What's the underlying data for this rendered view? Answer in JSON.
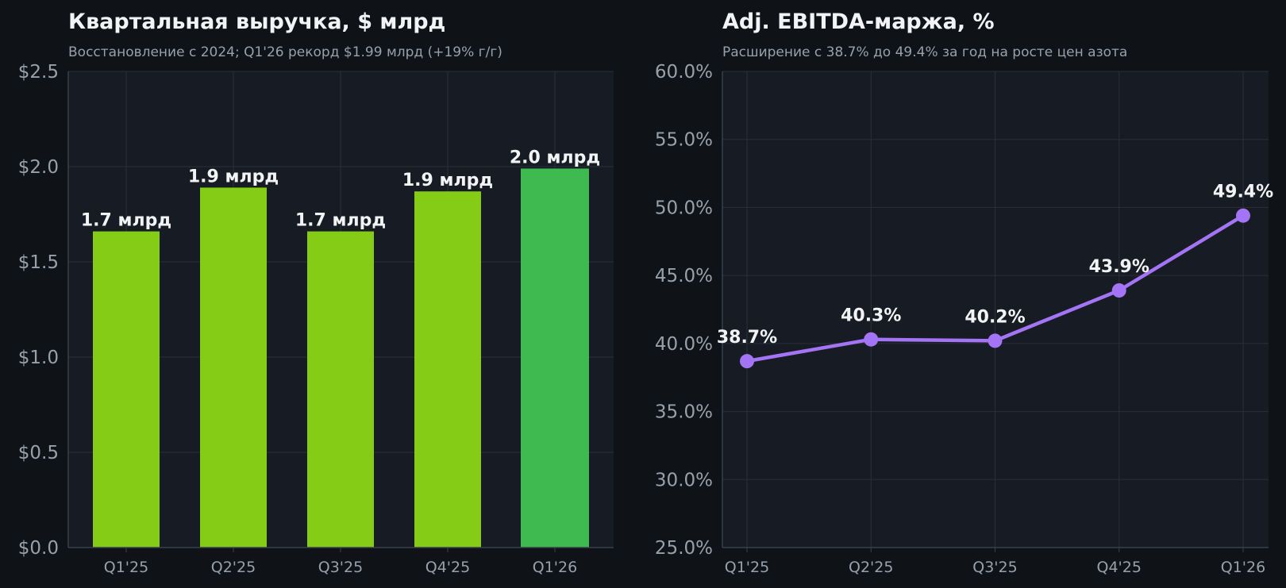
{
  "theme": {
    "page_bg": "#0f1318",
    "plot_bg": "#171b23",
    "grid": "#2a2f38",
    "axis": "#3a404a",
    "text_main": "#f2f3f5",
    "text_muted": "#9aa0a8",
    "bar_color": "#84cc16",
    "bar_highlight": "#3fba50",
    "line_color": "#a374f5"
  },
  "chart_data": [
    {
      "type": "bar",
      "title": "Квартальная выручка, $ млрд",
      "subtitle": "Восстановление с 2024; Q1'26 рекорд $1.99 млрд (+19% г/г)",
      "xlabel": "",
      "ylabel": "",
      "categories": [
        "Q1'25",
        "Q2'25",
        "Q3'25",
        "Q4'25",
        "Q1'26"
      ],
      "values": [
        1.66,
        1.89,
        1.66,
        1.87,
        1.99
      ],
      "data_labels": [
        "1.7 млрд",
        "1.9 млрд",
        "1.7 млрд",
        "1.9 млрд",
        "2.0 млрд"
      ],
      "highlight_index": 4,
      "ylim": [
        0,
        2.5
      ],
      "yticks": [
        0,
        0.5,
        1.0,
        1.5,
        2.0,
        2.5
      ],
      "ytick_labels": [
        "$0.0",
        "$0.5",
        "$1.0",
        "$1.5",
        "$2.0",
        "$2.5"
      ],
      "grid": true,
      "legend": "none"
    },
    {
      "type": "line",
      "title": "Adj. EBITDA-маржа, %",
      "subtitle": "Расширение с 38.7% до 49.4% за год на росте цен азота",
      "xlabel": "",
      "ylabel": "",
      "categories": [
        "Q1'25",
        "Q2'25",
        "Q3'25",
        "Q4'25",
        "Q1'26"
      ],
      "values": [
        38.7,
        40.3,
        40.2,
        43.9,
        49.4
      ],
      "data_labels": [
        "38.7%",
        "40.3%",
        "40.2%",
        "43.9%",
        "49.4%"
      ],
      "ylim": [
        25,
        60
      ],
      "yticks": [
        25,
        30,
        35,
        40,
        45,
        50,
        55,
        60
      ],
      "ytick_labels": [
        "25.0%",
        "30.0%",
        "35.0%",
        "40.0%",
        "45.0%",
        "50.0%",
        "55.0%",
        "60.0%"
      ],
      "grid": true,
      "legend": "none"
    }
  ]
}
